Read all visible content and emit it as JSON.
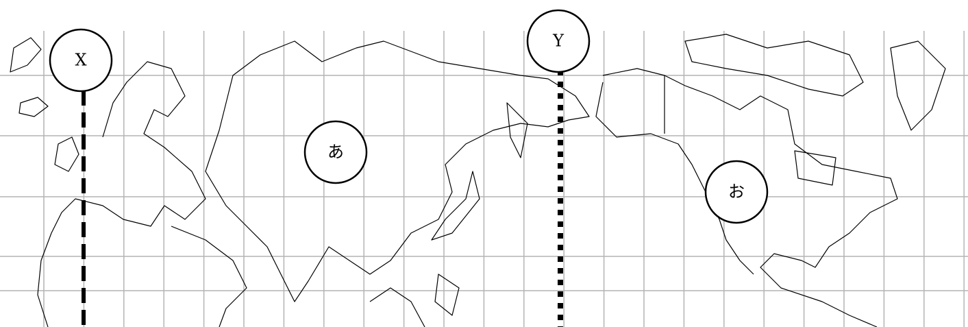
{
  "map": {
    "markers": [
      {
        "label": "X"
      },
      {
        "label": "Y"
      },
      {
        "label": "あ"
      },
      {
        "label": "お"
      }
    ]
  }
}
